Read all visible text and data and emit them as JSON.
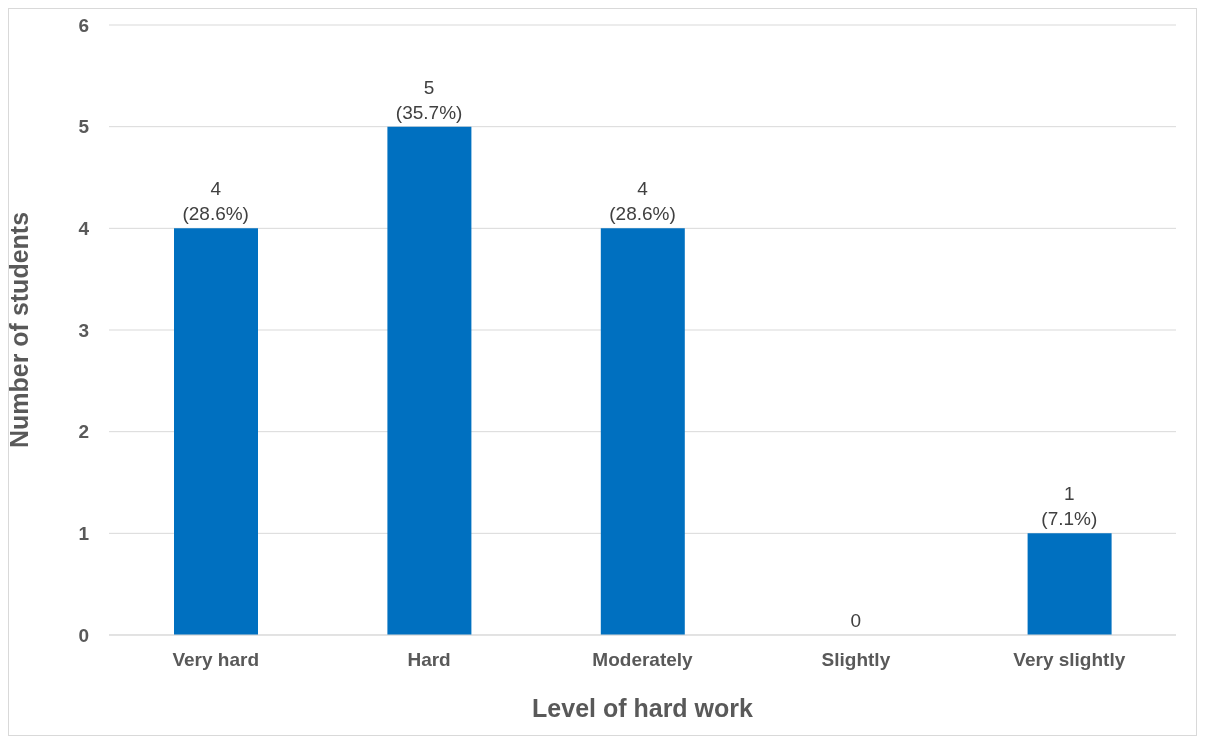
{
  "chart_data": {
    "type": "bar",
    "xlabel": "Level of hard work",
    "ylabel": "Number of students",
    "categories": [
      "Very hard",
      "Hard",
      "Moderately",
      "Slightly",
      "Very slightly"
    ],
    "values": [
      4,
      5,
      4,
      0,
      1
    ],
    "color": "#0070c0",
    "value_labels": [
      "4\n(28.6%)",
      "5\n(35.7%)",
      "4\n(28.6%)",
      "0",
      "1\n(7.1%)"
    ],
    "ylim": [
      0,
      6
    ],
    "yticks": [
      0,
      1,
      2,
      3,
      4,
      5,
      6
    ],
    "grid": "y"
  }
}
